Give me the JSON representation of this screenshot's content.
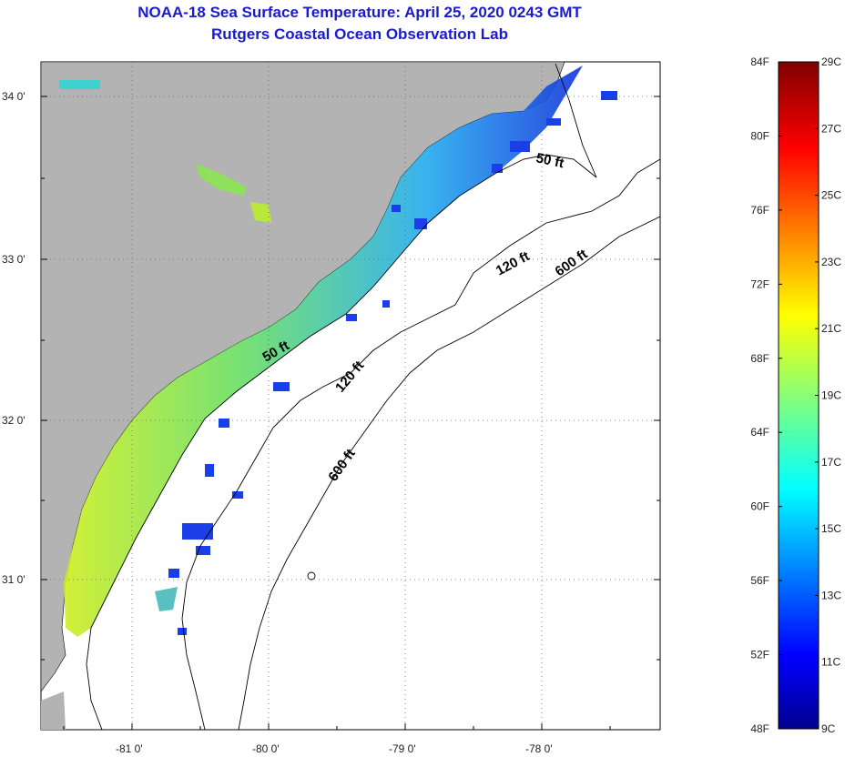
{
  "title": {
    "line1": "NOAA-18 Sea Surface Temperature:  April 25, 2020 0243 GMT",
    "line2": "Rutgers Coastal Ocean Observation Lab"
  },
  "map": {
    "latitude_labels": [
      "34 0'",
      "33 0'",
      "32 0'",
      "31 0'"
    ],
    "longitude_labels": [
      "-81 0'",
      "-80 0'",
      "-79 0'",
      "-78 0'"
    ],
    "land_color": "#b3b3b3",
    "ocean_color": "#ffffff",
    "isobath_labels": [
      {
        "text": "50 ft",
        "depth_ft": 50
      },
      {
        "text": "50 ft",
        "depth_ft": 50
      },
      {
        "text": "120 ft",
        "depth_ft": 120
      },
      {
        "text": "120 ft",
        "depth_ft": 120
      },
      {
        "text": "600 ft",
        "depth_ft": 600
      },
      {
        "text": "600 ft",
        "depth_ft": 600
      }
    ]
  },
  "colorbar": {
    "fahrenheit_labels": [
      "84F",
      "80F",
      "76F",
      "72F",
      "68F",
      "64F",
      "60F",
      "56F",
      "52F",
      "48F"
    ],
    "celsius_labels": [
      "29C",
      "27C",
      "25C",
      "23C",
      "21C",
      "19C",
      "17C",
      "15C",
      "13C",
      "11C",
      "9C"
    ],
    "range_f": [
      48,
      84
    ],
    "range_c": [
      9,
      29
    ],
    "colormap": "jet"
  }
}
